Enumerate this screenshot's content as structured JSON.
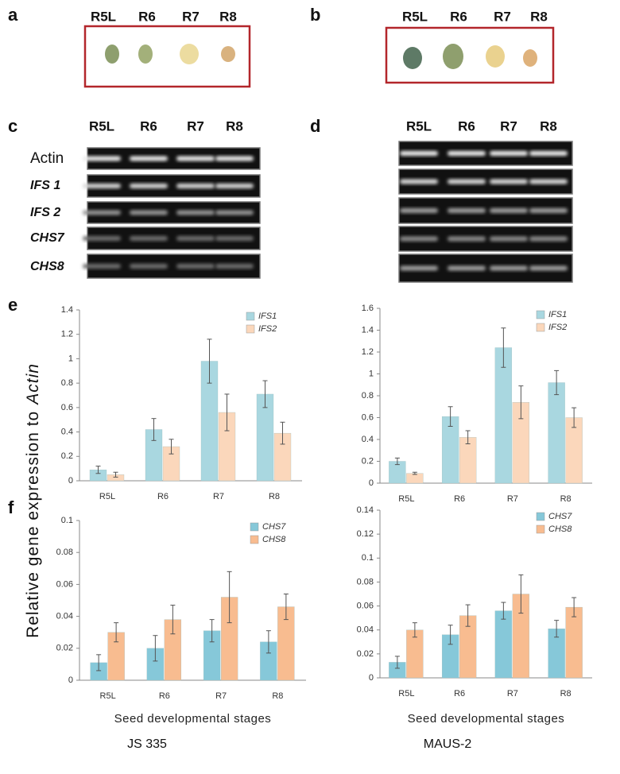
{
  "panel_labels": [
    "a",
    "b",
    "c",
    "d",
    "e",
    "f"
  ],
  "seed_stages_a": [
    "R5L",
    "R6",
    "R7",
    "R8"
  ],
  "seed_stages_b": [
    "R5L",
    "R6",
    "R7",
    "R8"
  ],
  "gel_c": {
    "lanes": [
      "R5L",
      "R6",
      "R7",
      "R8"
    ],
    "rows": [
      "Actin",
      "IFS 1",
      "IFS 2",
      "CHS7",
      "CHS8"
    ]
  },
  "gel_d": {
    "lanes": [
      "R5L",
      "R6",
      "R7",
      "R8"
    ]
  },
  "shared_y_label": [
    "Relative gene expression to",
    "Actin"
  ],
  "strains": [
    "JS 335",
    "MAUS-2"
  ],
  "chart_data": [
    {
      "type": "bar",
      "categories": [
        "R5L",
        "R6",
        "R7",
        "R8"
      ],
      "series": [
        {
          "name": "IFS1",
          "color": "#a9d7e0",
          "values": [
            0.09,
            0.42,
            0.98,
            0.71
          ],
          "errors": [
            0.03,
            0.09,
            0.18,
            0.11
          ]
        },
        {
          "name": "IFS2",
          "color": "#fbd7bb",
          "values": [
            0.05,
            0.28,
            0.56,
            0.39
          ],
          "errors": [
            0.02,
            0.06,
            0.15,
            0.09
          ]
        }
      ],
      "ylim": [
        0,
        1.4
      ],
      "yticks": [
        0,
        0.2,
        0.4,
        0.6,
        0.8,
        1,
        1.2,
        1.4
      ],
      "legend": "top-right"
    },
    {
      "type": "bar",
      "categories": [
        "R5L",
        "R6",
        "R7",
        "R8"
      ],
      "series": [
        {
          "name": "IFS1",
          "color": "#a9d7e0",
          "values": [
            0.2,
            0.61,
            1.24,
            0.92
          ],
          "errors": [
            0.03,
            0.09,
            0.18,
            0.11
          ]
        },
        {
          "name": "IFS2",
          "color": "#fbd7bb",
          "values": [
            0.09,
            0.42,
            0.74,
            0.6
          ],
          "errors": [
            0.01,
            0.06,
            0.15,
            0.09
          ]
        }
      ],
      "ylim": [
        0,
        1.6
      ],
      "yticks": [
        0,
        0.2,
        0.4,
        0.6,
        0.8,
        1,
        1.2,
        1.4,
        1.6
      ],
      "legend": "top-right"
    },
    {
      "type": "bar",
      "categories": [
        "R5L",
        "R6",
        "R7",
        "R8"
      ],
      "x_label": "Seed developmental stages",
      "series": [
        {
          "name": "CHS7",
          "color": "#86c8d9",
          "values": [
            0.011,
            0.02,
            0.031,
            0.024
          ],
          "errors": [
            0.005,
            0.008,
            0.007,
            0.007
          ]
        },
        {
          "name": "CHS8",
          "color": "#f8bc90",
          "values": [
            0.03,
            0.038,
            0.052,
            0.046
          ],
          "errors": [
            0.006,
            0.009,
            0.016,
            0.008
          ]
        }
      ],
      "ylim": [
        0,
        0.1
      ],
      "yticks": [
        0,
        0.02,
        0.04,
        0.06,
        0.08,
        0.1
      ],
      "legend": "top-right"
    },
    {
      "type": "bar",
      "categories": [
        "R5L",
        "R6",
        "R7",
        "R8"
      ],
      "x_label": "Seed developmental stages",
      "series": [
        {
          "name": "CHS7",
          "color": "#86c8d9",
          "values": [
            0.013,
            0.036,
            0.056,
            0.041
          ],
          "errors": [
            0.005,
            0.008,
            0.007,
            0.007
          ]
        },
        {
          "name": "CHS8",
          "color": "#f8bc90",
          "values": [
            0.04,
            0.052,
            0.07,
            0.059
          ],
          "errors": [
            0.006,
            0.009,
            0.016,
            0.008
          ]
        }
      ],
      "ylim": [
        0,
        0.14
      ],
      "yticks": [
        0,
        0.02,
        0.04,
        0.06,
        0.08,
        0.1,
        0.12,
        0.14
      ],
      "legend": "top-right"
    }
  ]
}
